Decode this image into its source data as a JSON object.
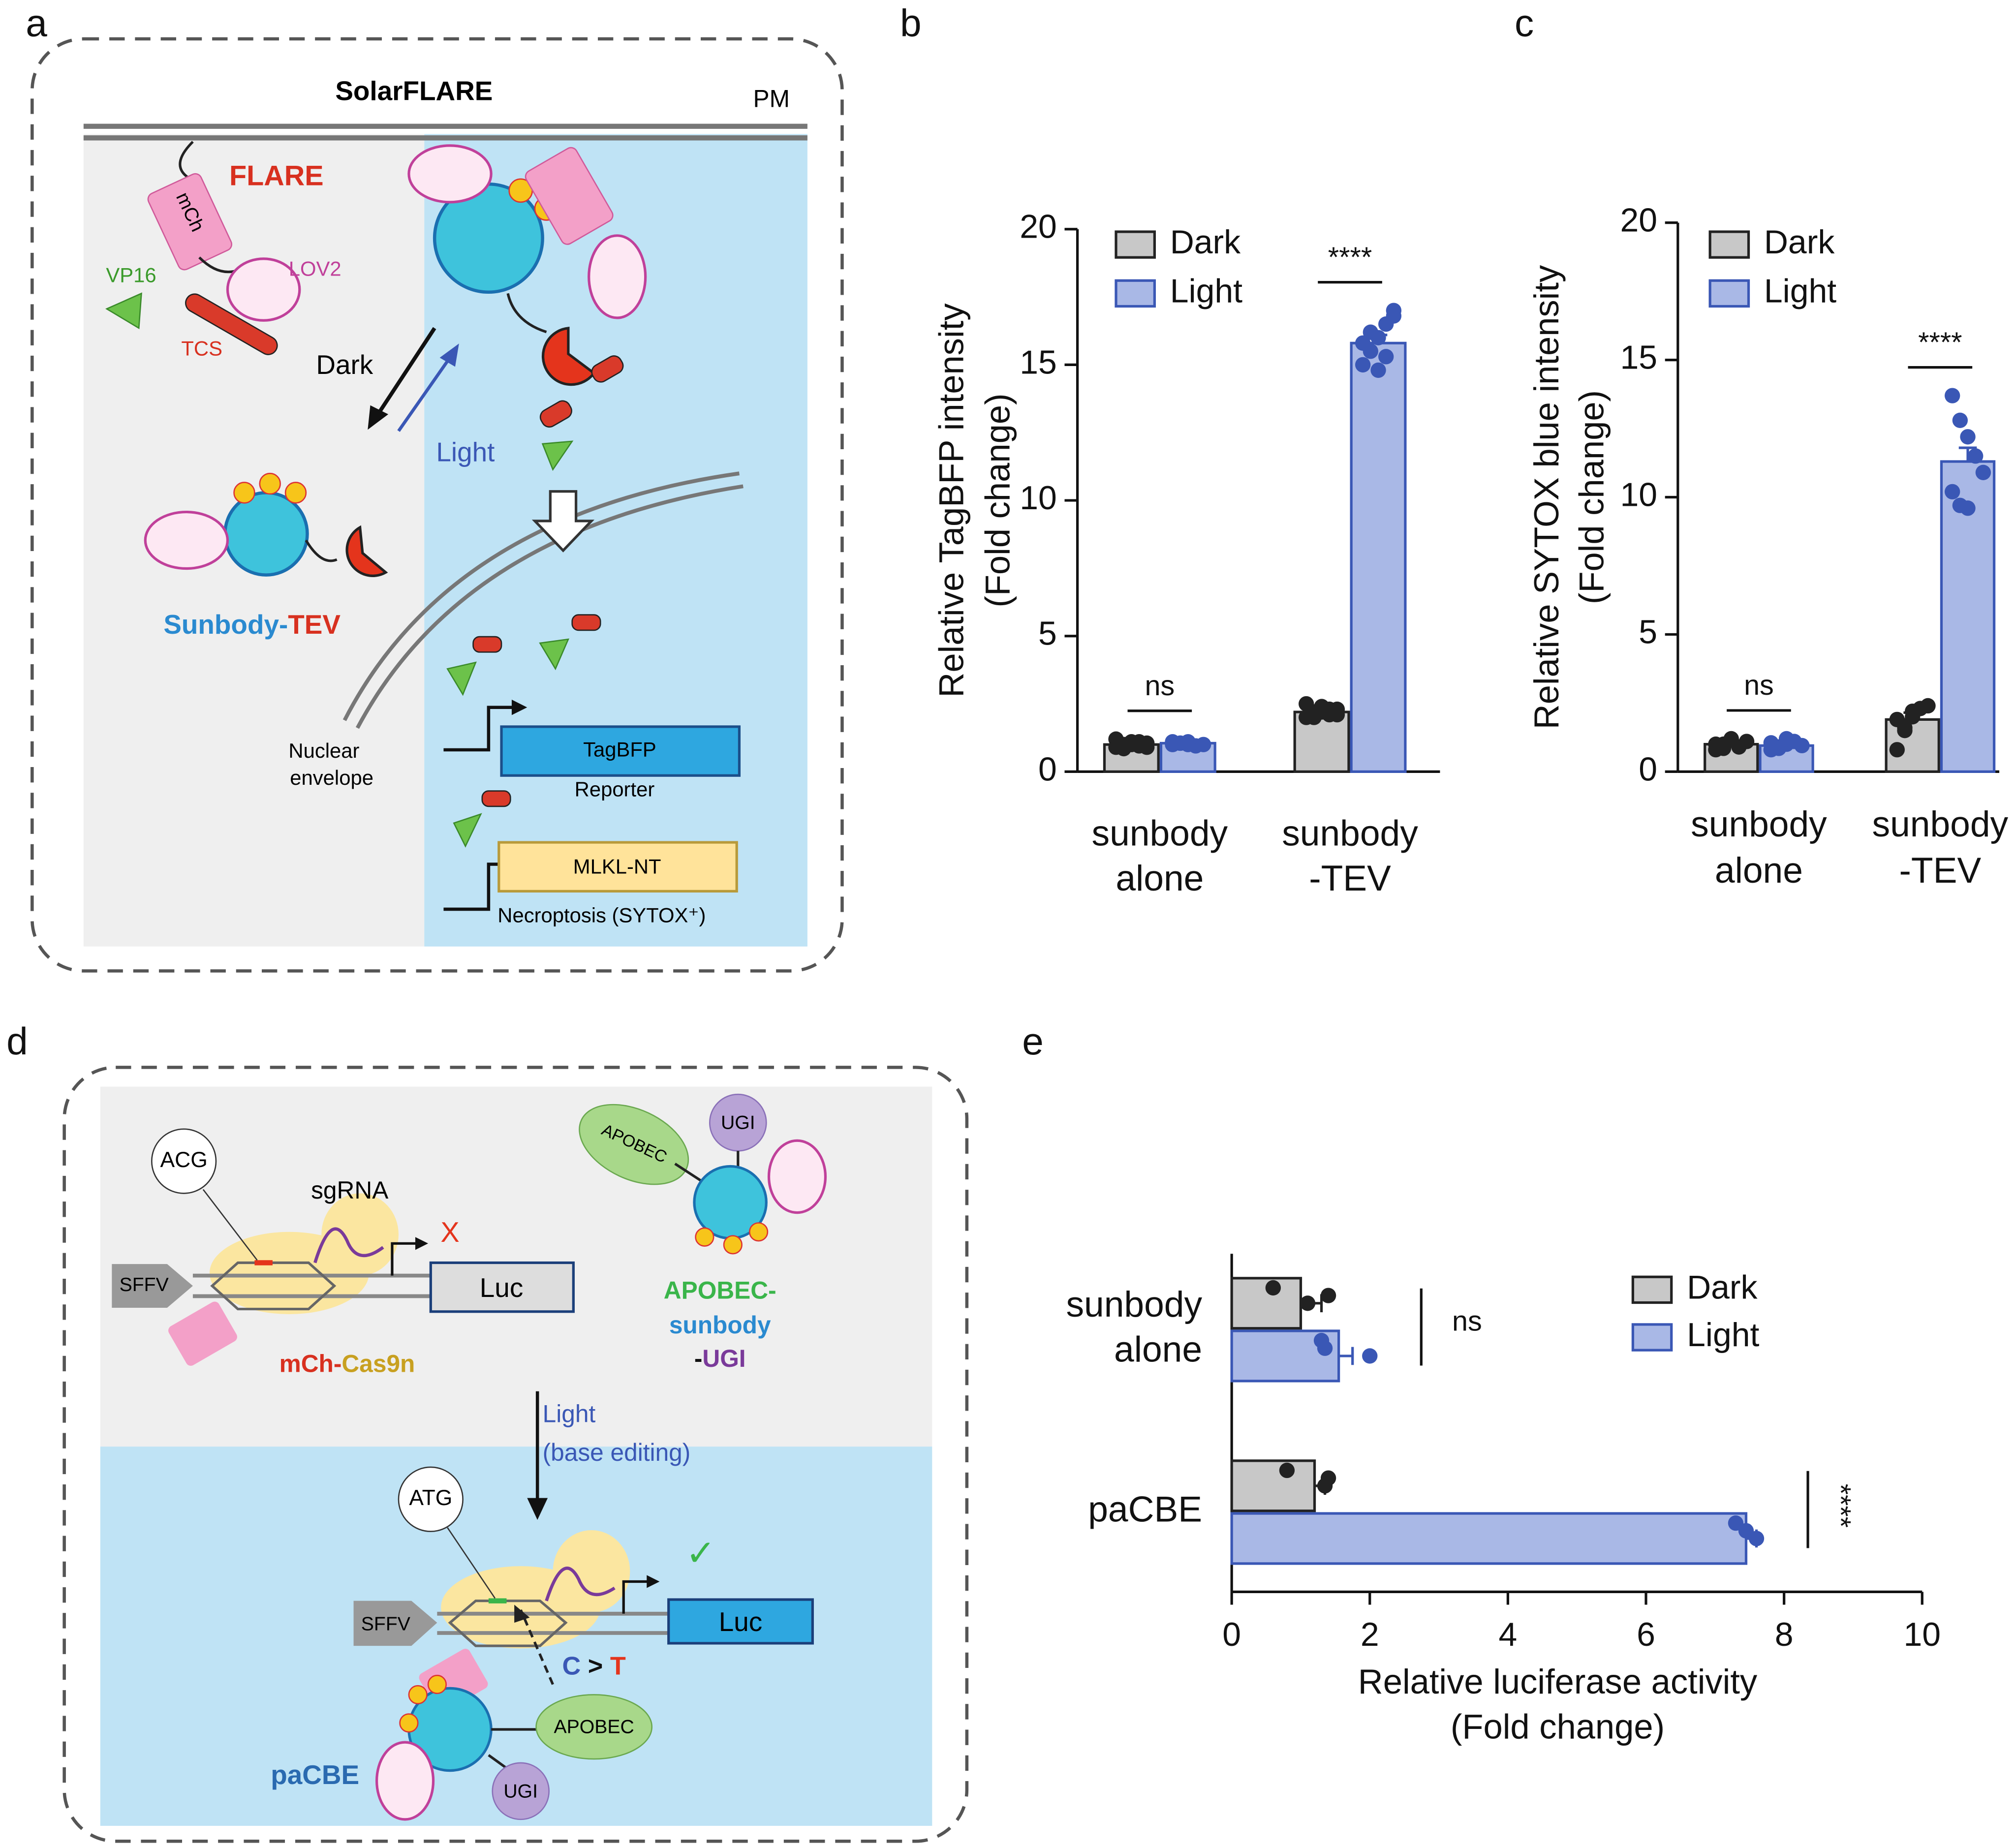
{
  "panel_labels": [
    "a",
    "b",
    "c",
    "d",
    "e"
  ],
  "diagram_a": {
    "title": "SolarFLARE",
    "membrane": "PM",
    "flare": "FLARE",
    "mch": "mCh",
    "lov2": "LOV2",
    "vp16": "VP16",
    "tcs": "TCS",
    "dark": "Dark",
    "light": "Light",
    "sunbody_tev": [
      "Sunbody-",
      "TEV"
    ],
    "nuclear_envelope": [
      "Nuclear",
      "envelope"
    ],
    "tagbfp": "TagBFP",
    "reporter": "Reporter",
    "mlkl": "MLKL-NT",
    "necroptosis": "Necroptosis (SYTOX⁺)"
  },
  "diagram_d": {
    "acg": "ACG",
    "sgrna": "sgRNA",
    "sffv_top": "SFFV",
    "luc_top": "Luc",
    "block": "X",
    "mch_cas9n": [
      "mCh-",
      "Cas9n"
    ],
    "apobec_top": "APOBEC",
    "ugi_top": "UGI",
    "apobec_sunbody_ugi": [
      "APOBEC-",
      "sunbody",
      "-",
      "UGI"
    ],
    "light": [
      "Light",
      "(base editing)"
    ],
    "atg": "ATG",
    "sffv_bottom": "SFFV",
    "luc_bottom": "Luc",
    "check": "✓",
    "c_to_t": [
      "C",
      " > ",
      "T"
    ],
    "apobec_bottom": "APOBEC",
    "pacbe": "paCBE",
    "ugi_bottom": "UGI"
  },
  "chart_data": [
    {
      "type": "bar",
      "orientation": "vertical",
      "ylabel": [
        "Relative TagBFP intensity",
        "(Fold change)"
      ],
      "categories": [
        [
          "sunbody",
          "alone"
        ],
        [
          "sunbody",
          "-TEV"
        ]
      ],
      "series": [
        {
          "name": "Dark",
          "color": "#c8c8c8",
          "edgecolor": "#222222",
          "values": [
            1.0,
            2.2
          ],
          "errors": [
            0.1,
            0.1
          ],
          "points": [
            [
              0.9,
              1.0,
              1.1,
              0.95,
              1.05,
              1.2,
              0.85,
              1.0,
              1.1,
              0.9
            ],
            [
              2.0,
              2.2,
              2.4,
              2.1,
              2.3,
              2.5,
              2.0,
              2.2,
              2.3,
              2.1
            ]
          ]
        },
        {
          "name": "Light",
          "color": "#a9b8e6",
          "edgecolor": "#3a57b5",
          "values": [
            1.05,
            15.8
          ],
          "errors": [
            0.05,
            0.3
          ],
          "points": [
            [
              1.0,
              1.05,
              1.1,
              0.95,
              1.0,
              1.1,
              1.05,
              1.0
            ],
            [
              15.0,
              15.5,
              16.0,
              16.5,
              17.0,
              15.8,
              16.2,
              14.8,
              15.3,
              16.8
            ]
          ]
        }
      ],
      "annotations": [
        "ns",
        "****"
      ],
      "ylim": [
        0,
        20
      ],
      "yticks": [
        0,
        5,
        10,
        15,
        20
      ]
    },
    {
      "type": "bar",
      "orientation": "vertical",
      "ylabel": [
        "Relative SYTOX blue intensity",
        "(Fold change)"
      ],
      "categories": [
        [
          "sunbody",
          "alone"
        ],
        [
          "sunbody",
          "-TEV"
        ]
      ],
      "series": [
        {
          "name": "Dark",
          "color": "#c8c8c8",
          "edgecolor": "#222222",
          "values": [
            1.0,
            1.9
          ],
          "errors": [
            0.1,
            0.25
          ],
          "points": [
            [
              0.8,
              1.0,
              1.2,
              0.9,
              1.1,
              1.0,
              0.85,
              1.15
            ],
            [
              0.8,
              1.5,
              2.0,
              2.3,
              2.4,
              1.9,
              1.6,
              2.2
            ]
          ]
        },
        {
          "name": "Light",
          "color": "#a9b8e6",
          "edgecolor": "#3a57b5",
          "values": [
            0.95,
            11.3
          ],
          "errors": [
            0.05,
            0.5
          ],
          "points": [
            [
              0.8,
              0.9,
              1.0,
              1.1,
              0.95,
              1.05,
              0.85,
              1.2
            ],
            [
              13.7,
              12.8,
              12.2,
              11.5,
              10.9,
              10.2,
              9.7,
              9.6
            ]
          ]
        }
      ],
      "annotations": [
        "ns",
        "****"
      ],
      "ylim": [
        0,
        20
      ],
      "yticks": [
        0,
        5,
        10,
        15,
        20
      ]
    },
    {
      "type": "bar",
      "orientation": "horizontal",
      "xlabel": [
        "Relative luciferase activity",
        "(Fold change)"
      ],
      "categories": [
        [
          "sunbody",
          "alone"
        ],
        [
          "paCBE"
        ]
      ],
      "series": [
        {
          "name": "Dark",
          "color": "#c8c8c8",
          "edgecolor": "#222222",
          "values": [
            1.0,
            1.2
          ],
          "errors": [
            0.3,
            0.15
          ],
          "points": [
            [
              0.6,
              1.4,
              1.1
            ],
            [
              0.8,
              1.4,
              1.35
            ]
          ]
        },
        {
          "name": "Light",
          "color": "#a9b8e6",
          "edgecolor": "#3a57b5",
          "values": [
            1.55,
            7.45
          ],
          "errors": [
            0.2,
            0.15
          ],
          "points": [
            [
              1.3,
              1.35,
              2.0
            ],
            [
              7.3,
              7.45,
              7.6
            ]
          ]
        }
      ],
      "annotations": [
        "ns",
        "****"
      ],
      "xlim": [
        0,
        10
      ],
      "xticks": [
        0,
        2,
        4,
        6,
        8,
        10
      ]
    }
  ]
}
